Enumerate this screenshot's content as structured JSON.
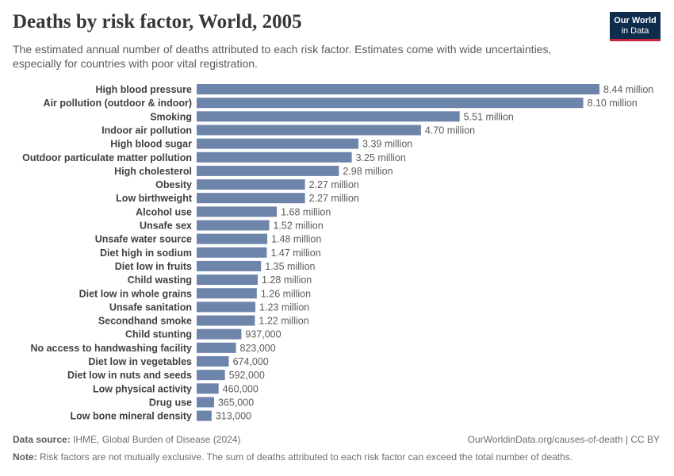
{
  "header": {
    "title": "Deaths by risk factor, World, 2005",
    "subtitle": "The estimated annual number of deaths attributed to each risk factor. Estimates come with wide uncertainties, especially for countries with poor vital registration."
  },
  "logo": {
    "line1": "Our World",
    "line2": "in Data"
  },
  "footer": {
    "source_label": "Data source:",
    "source_text": "IHME, Global Burden of Disease (2024)",
    "credit": "OurWorldinData.org/causes-of-death | CC BY",
    "note_label": "Note:",
    "note_text": "Risk factors are not mutually exclusive. The sum of deaths attributed to each risk factor can exceed the total number of deaths."
  },
  "colors": {
    "bar": "#6d84ab",
    "label": "#404040",
    "value": "#5b5b5b"
  },
  "chart_data": {
    "type": "bar",
    "orientation": "horizontal",
    "categories": [
      "High blood pressure",
      "Air pollution (outdoor & indoor)",
      "Smoking",
      "Indoor air pollution",
      "High blood sugar",
      "Outdoor particulate matter pollution",
      "High cholesterol",
      "Obesity",
      "Low birthweight",
      "Alcohol use",
      "Unsafe sex",
      "Unsafe water source",
      "Diet high in sodium",
      "Diet low in fruits",
      "Child wasting",
      "Diet low in whole grains",
      "Unsafe sanitation",
      "Secondhand smoke",
      "Child stunting",
      "No access to handwashing facility",
      "Diet low in vegetables",
      "Diet low in nuts and seeds",
      "Low physical activity",
      "Drug use",
      "Low bone mineral density"
    ],
    "values": [
      8440000,
      8100000,
      5510000,
      4700000,
      3390000,
      3250000,
      2980000,
      2270000,
      2270000,
      1680000,
      1520000,
      1480000,
      1470000,
      1350000,
      1280000,
      1260000,
      1230000,
      1220000,
      937000,
      823000,
      674000,
      592000,
      460000,
      365000,
      313000
    ],
    "value_labels": [
      "8.44 million",
      "8.10 million",
      "5.51 million",
      "4.70 million",
      "3.39 million",
      "3.25 million",
      "2.98 million",
      "2.27 million",
      "2.27 million",
      "1.68 million",
      "1.52 million",
      "1.48 million",
      "1.47 million",
      "1.35 million",
      "1.28 million",
      "1.26 million",
      "1.23 million",
      "1.22 million",
      "937,000",
      "823,000",
      "674,000",
      "592,000",
      "460,000",
      "365,000",
      "313,000"
    ]
  }
}
